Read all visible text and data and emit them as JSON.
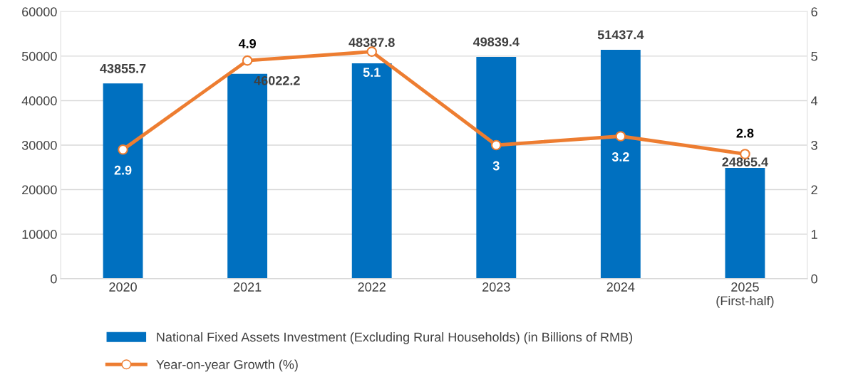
{
  "chart_data": {
    "type": "bar",
    "categories": [
      "2020",
      "2021",
      "2022",
      "2023",
      "2024",
      "2025\n(First-half)"
    ],
    "series": [
      {
        "name": "National Fixed Assets Investment (Excluding Rural Households) (in Billions of RMB)",
        "color": "#0070c0",
        "values": [
          43855.7,
          46022.2,
          48387.8,
          49839.4,
          51437.4,
          24865.4
        ]
      },
      {
        "name": "Year-on-year Growth (%)",
        "type": "line",
        "axis": "y2",
        "color": "#ed7d31",
        "marker": "circle",
        "values": [
          2.9,
          4.9,
          5.1,
          3,
          3.2,
          2.8
        ]
      }
    ],
    "ylim": [
      0,
      60000
    ],
    "yticks": [
      0,
      10000,
      20000,
      30000,
      40000,
      50000,
      60000
    ],
    "y2lim": [
      0,
      6
    ],
    "y2ticks": [
      0,
      1,
      2,
      3,
      4,
      5,
      6
    ],
    "grid": "y",
    "legend": "bottom",
    "data_labels": true
  }
}
